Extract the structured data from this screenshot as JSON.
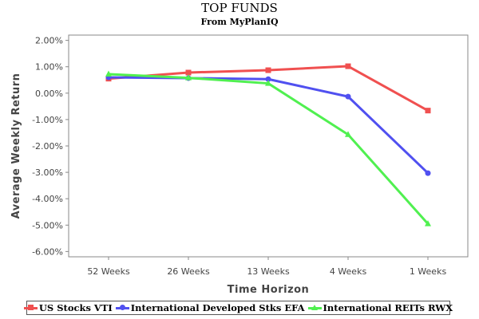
{
  "header": {
    "title": "TOP FUNDS",
    "subtitle": "From MyPlanIQ"
  },
  "chart_data": {
    "type": "line",
    "title": "TOP FUNDS",
    "subtitle": "From MyPlanIQ",
    "xlabel": "Time Horizon",
    "ylabel": "Average Weekly Return",
    "categories": [
      "52 Weeks",
      "26 Weeks",
      "13 Weeks",
      "4 Weeks",
      "1 Weeks"
    ],
    "ylim": [
      -6.2,
      2.2
    ],
    "yticks": [
      2,
      1,
      0,
      -1,
      -2,
      -3,
      -4,
      -5,
      -6
    ],
    "ytick_labels": [
      "2.00%",
      "1.00%",
      "0.00%",
      "-1.00%",
      "-2.00%",
      "-3.00%",
      "-4.00%",
      "-5.00%",
      "-6.00%"
    ],
    "grid": true,
    "zero_line": true,
    "legend_position": "bottom",
    "series": [
      {
        "name": "US Stocks  VTI",
        "color": "#f05050",
        "marker": "square",
        "values": [
          0.55,
          0.78,
          0.87,
          1.02,
          -0.66
        ]
      },
      {
        "name": "International Developed Stks  EFA",
        "color": "#5050f0",
        "marker": "circle",
        "values": [
          0.6,
          0.57,
          0.53,
          -0.13,
          -3.03
        ]
      },
      {
        "name": "International REITs  RWX",
        "color": "#50f050",
        "marker": "triangle",
        "values": [
          0.72,
          0.58,
          0.37,
          -1.57,
          -4.95
        ]
      }
    ]
  }
}
